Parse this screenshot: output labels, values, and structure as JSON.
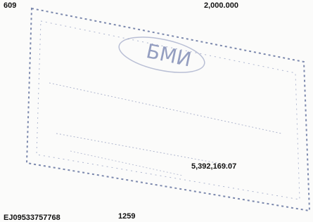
{
  "document": {
    "amounts": {
      "top_left": "609",
      "top_right": "2,000.000",
      "total": "5,392,169.07"
    },
    "stamp": {
      "name": "БМИ"
    },
    "footer": {
      "reference": "EJ09533757768",
      "number": "1259"
    }
  }
}
